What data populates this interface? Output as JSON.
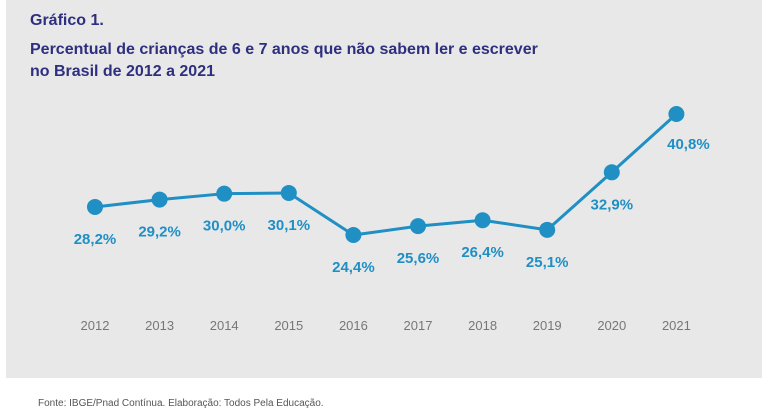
{
  "header": {
    "label": "Gráfico 1.",
    "title_line1": "Percentual de crianças de 6 e 7 anos que não sabem ler e escrever",
    "title_line2": "no Brasil de 2012 a 2021"
  },
  "footer": {
    "source": "Fonte: IBGE/Pnad Contínua. Elaboração: Todos Pela Educação."
  },
  "colors": {
    "series": "#1f8fc4",
    "title": "#2e2f7f",
    "axis_text": "#777777",
    "background": "#e8e8e9"
  },
  "chart_data": {
    "type": "line",
    "title": "Percentual de crianças de 6 e 7 anos que não sabem ler e escrever no Brasil de 2012 a 2021",
    "categories": [
      "2012",
      "2013",
      "2014",
      "2015",
      "2016",
      "2017",
      "2018",
      "2019",
      "2020",
      "2021"
    ],
    "series": [
      {
        "values": [
          28.2,
          29.2,
          30.0,
          30.1,
          24.4,
          25.6,
          26.4,
          25.1,
          32.9,
          40.8
        ],
        "labels": [
          "28,2%",
          "29,2%",
          "30,0%",
          "30,1%",
          "24,4%",
          "25,6%",
          "26,4%",
          "25,1%",
          "32,9%",
          "40,8%"
        ]
      }
    ],
    "grid": false,
    "legend": "none"
  }
}
